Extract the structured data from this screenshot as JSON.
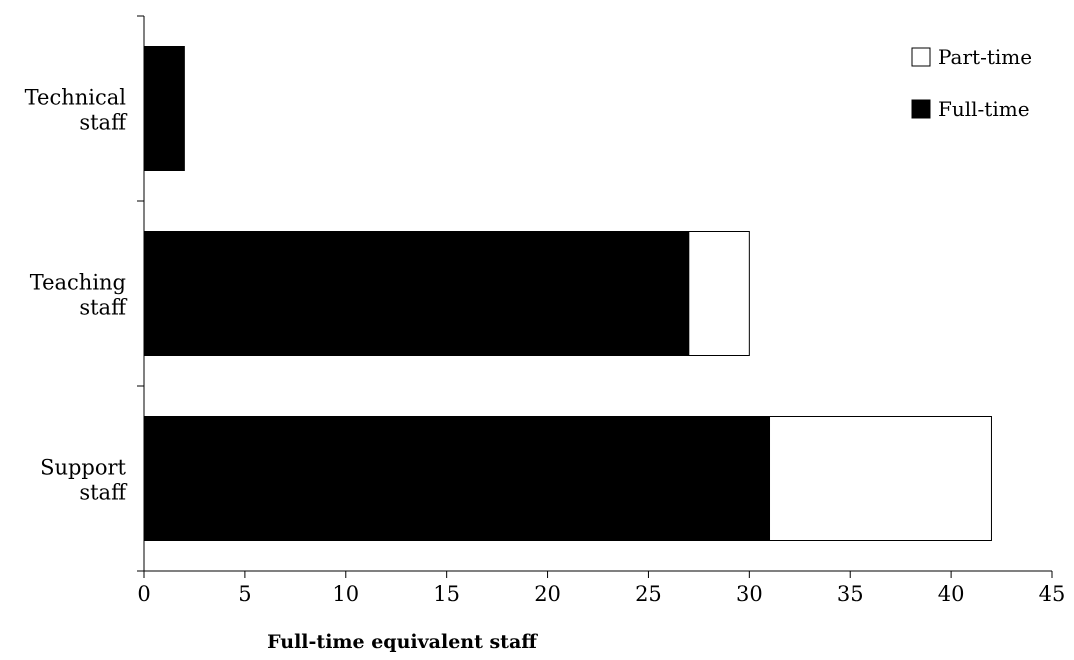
{
  "chart_data": {
    "type": "bar",
    "orientation": "horizontal",
    "stacked": true,
    "categories": [
      "Technical staff",
      "Teaching staff",
      "Support staff"
    ],
    "category_label_lines": [
      [
        "Technical",
        "staff"
      ],
      [
        "Teaching",
        "staff"
      ],
      [
        "Support",
        "staff"
      ]
    ],
    "series": [
      {
        "name": "Full-time",
        "values": [
          2,
          27,
          31
        ],
        "color": "#000000"
      },
      {
        "name": "Part-time",
        "values": [
          0,
          3,
          11
        ],
        "color": "#ffffff"
      }
    ],
    "legend_order": [
      "Part-time",
      "Full-time"
    ],
    "legend_position": "top-right",
    "xlabel": "Full-time equivalent staff",
    "ylabel": "",
    "title": "",
    "xlim": [
      0,
      45
    ],
    "xticks": [
      0,
      5,
      10,
      15,
      20,
      25,
      30,
      35,
      40,
      45
    ],
    "grid": false
  }
}
